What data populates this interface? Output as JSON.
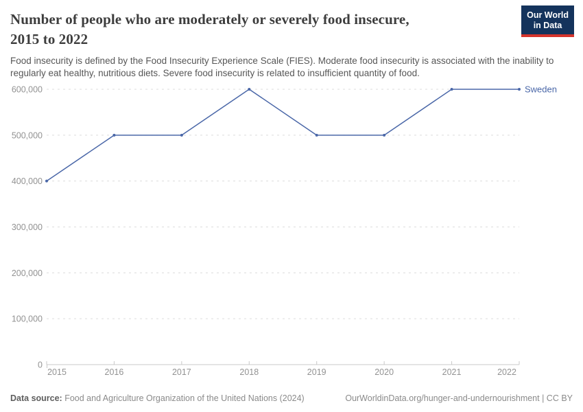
{
  "header": {
    "title": "Number of people who are moderately or severely food insecure, 2015 to 2022",
    "title_line1": "Number of people who are moderately or severely food insecure,",
    "title_line2": "2015 to 2022",
    "subtitle": "Food insecurity is defined by the Food Insecurity Experience Scale (FIES). Moderate food insecurity is associated with the inability to regularly eat healthy, nutritious diets. Severe food insecurity is related to insufficient quantity of food.",
    "logo": {
      "line1": "Our World",
      "line2": "in Data"
    }
  },
  "chart_data": {
    "type": "line",
    "title": "Number of people who are moderately or severely food insecure, 2015 to 2022",
    "x": [
      2015,
      2016,
      2017,
      2018,
      2019,
      2020,
      2021,
      2022
    ],
    "series": [
      {
        "name": "Sweden",
        "color": "#4a67a8",
        "values": [
          400000,
          500000,
          500000,
          600000,
          500000,
          500000,
          600000,
          600000
        ]
      }
    ],
    "xlabel": "",
    "ylabel": "",
    "ylim": [
      0,
      600000
    ],
    "ytick_step": 100000,
    "ytick_labels": [
      "0",
      "100,000",
      "200,000",
      "300,000",
      "400,000",
      "500,000",
      "600,000"
    ],
    "grid": "horizontal-dashed",
    "legend_position": "end-of-line-label"
  },
  "colors": {
    "line": "#4a67a8",
    "grid": "#dcdcdc",
    "axis": "#c8c8c8",
    "tick_label": "#929292",
    "series_label": "#4a67a8"
  },
  "footer": {
    "source_label": "Data source:",
    "source_text": " Food and Agriculture Organization of the United Nations (2024)",
    "credit": "OurWorldinData.org/hunger-and-undernourishment | CC BY"
  }
}
